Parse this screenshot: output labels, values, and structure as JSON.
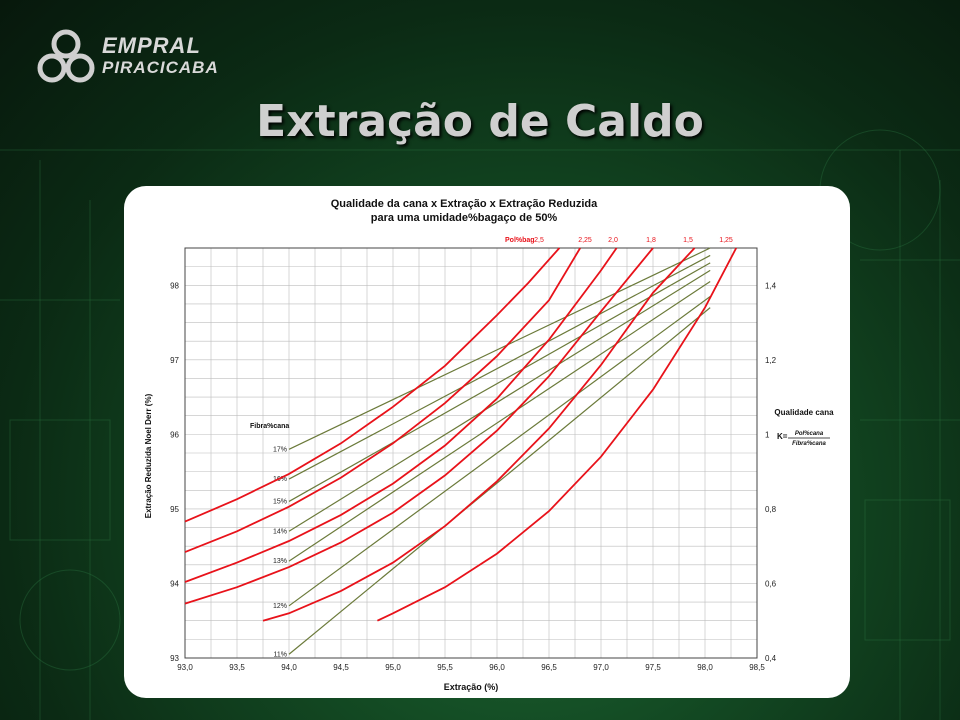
{
  "logo": {
    "line1": "EMPRAL",
    "line2": "PIRACICABA"
  },
  "slide_title": "Extração de Caldo",
  "chart_data": {
    "type": "line",
    "title": "Qualidade da cana x Extração x Extração Reduzida",
    "subtitle": "para uma umidade%bagaço de 50%",
    "xlabel": "Extração (%)",
    "ylabel": "Extração Reduzida Noel Derr (%)",
    "right_axis_label": "Qualidade cana",
    "formula": {
      "k": "K=",
      "numerator": "Pol%cana",
      "denominator": "Fibra%cana"
    },
    "xlim": [
      93.0,
      98.5
    ],
    "ylim": [
      93,
      98.5
    ],
    "right_ylim": [
      0.4,
      1.4
    ],
    "grid": true,
    "x_ticks": [
      "93,0",
      "93,5",
      "94,0",
      "94,5",
      "95,0",
      "95,5",
      "96,0",
      "96,5",
      "97,0",
      "97,5",
      "98,0",
      "98,5"
    ],
    "y_ticks": [
      "93",
      "94",
      "95",
      "96",
      "97",
      "98"
    ],
    "right_ticks": [
      "0,4",
      "0,6",
      "0,8",
      "1",
      "1,2",
      "1,4"
    ],
    "pol_bag_label": "Pol%bag",
    "fibra_label": "Fibra%cana",
    "pol_bag_series": [
      {
        "name": "2,5",
        "x": [
          93.0,
          93.5,
          94.0,
          94.5,
          95.0,
          95.5,
          96.0,
          96.3,
          96.6
        ],
        "y": [
          94.83,
          95.13,
          95.47,
          95.88,
          96.37,
          96.92,
          97.6,
          98.03,
          98.5
        ]
      },
      {
        "name": "2,25",
        "x": [
          93.0,
          93.5,
          94.0,
          94.5,
          95.0,
          95.5,
          96.0,
          96.5,
          96.8
        ],
        "y": [
          94.42,
          94.7,
          95.03,
          95.42,
          95.88,
          96.42,
          97.05,
          97.8,
          98.5
        ]
      },
      {
        "name": "2,0",
        "x": [
          93.0,
          93.5,
          94.0,
          94.5,
          95.0,
          95.5,
          96.0,
          96.5,
          97.0,
          97.15
        ],
        "y": [
          94.02,
          94.28,
          94.57,
          94.92,
          95.34,
          95.85,
          96.48,
          97.27,
          98.2,
          98.5
        ]
      },
      {
        "name": "1,8",
        "x": [
          93.0,
          93.5,
          94.0,
          94.5,
          95.0,
          95.5,
          96.0,
          96.5,
          97.0,
          97.5
        ],
        "y": [
          93.73,
          93.95,
          94.22,
          94.55,
          94.95,
          95.45,
          96.05,
          96.78,
          97.65,
          98.5
        ]
      },
      {
        "name": "1,5",
        "x": [
          93.75,
          94.0,
          94.5,
          95.0,
          95.5,
          96.0,
          96.5,
          97.0,
          97.5,
          97.9
        ],
        "y": [
          93.5,
          93.6,
          93.9,
          94.28,
          94.77,
          95.37,
          96.08,
          96.93,
          97.9,
          98.5
        ]
      },
      {
        "name": "1,25",
        "x": [
          94.85,
          95.0,
          95.5,
          96.0,
          96.5,
          97.0,
          97.5,
          98.0,
          98.3
        ],
        "y": [
          93.5,
          93.6,
          93.95,
          94.4,
          94.97,
          95.7,
          96.6,
          97.7,
          98.5
        ]
      }
    ],
    "fibra_series": [
      {
        "name": "17%",
        "x": [
          94.0,
          98.05
        ],
        "y": [
          95.8,
          98.5
        ]
      },
      {
        "name": "16%",
        "x": [
          94.0,
          98.05
        ],
        "y": [
          95.4,
          98.4
        ]
      },
      {
        "name": "15%",
        "x": [
          94.0,
          98.05
        ],
        "y": [
          95.1,
          98.3
        ]
      },
      {
        "name": "14%",
        "x": [
          94.0,
          98.05
        ],
        "y": [
          94.7,
          98.2
        ]
      },
      {
        "name": "13%",
        "x": [
          94.0,
          98.05
        ],
        "y": [
          94.3,
          98.05
        ]
      },
      {
        "name": "12%",
        "x": [
          94.0,
          98.05
        ],
        "y": [
          93.7,
          97.85
        ]
      },
      {
        "name": "11%",
        "x": [
          94.0,
          98.05
        ],
        "y": [
          93.05,
          97.7
        ]
      }
    ],
    "colors": {
      "pol_bag": "#e8121a",
      "fibra": "#6b7a3a",
      "grid": "#bdbdbd"
    }
  }
}
